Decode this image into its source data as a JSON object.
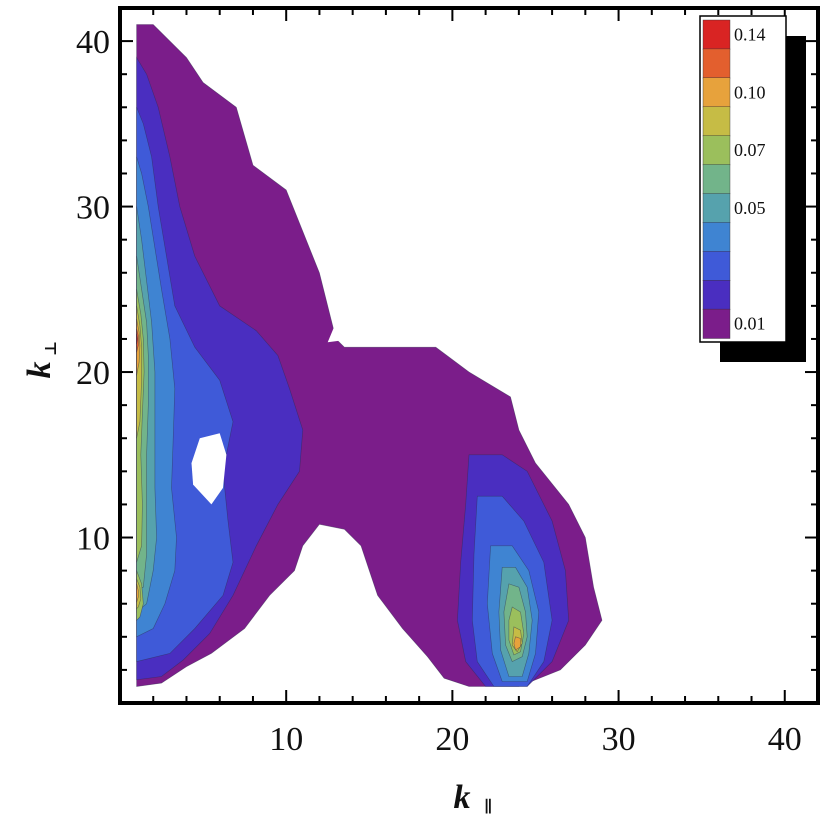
{
  "chart_data": {
    "type": "heatmap",
    "subtype": "filled-contour",
    "title": "",
    "xlabel_main": "k",
    "xlabel_sub": "∥",
    "ylabel_main": "k",
    "ylabel_sub": "⊥",
    "xlim": [
      0,
      42
    ],
    "ylim": [
      0,
      42
    ],
    "xticks": [
      10,
      20,
      30,
      40
    ],
    "yticks": [
      10,
      20,
      30,
      40
    ],
    "grid": false,
    "legend": {
      "placement": "top-right",
      "labels": [
        "0.14",
        "0.10",
        "0.07",
        "0.05",
        "0.01"
      ],
      "label_levels": [
        0.14,
        0.1,
        0.07,
        0.05,
        0.01
      ]
    },
    "levels": [
      {
        "value": 0.01,
        "color": "#7b1d8a"
      },
      {
        "value": 0.02,
        "color": "#4a2ec0"
      },
      {
        "value": 0.03,
        "color": "#3f5ad8"
      },
      {
        "value": 0.04,
        "color": "#3f84d2"
      },
      {
        "value": 0.05,
        "color": "#56a2ad"
      },
      {
        "value": 0.06,
        "color": "#72b48a"
      },
      {
        "value": 0.07,
        "color": "#9bbf5c"
      },
      {
        "value": 0.08,
        "color": "#c6bc45"
      },
      {
        "value": 0.1,
        "color": "#e7a23c"
      },
      {
        "value": 0.12,
        "color": "#e35f2e"
      },
      {
        "value": 0.14,
        "color": "#d92423"
      }
    ],
    "regions": [
      {
        "level": 0.01,
        "points": [
          [
            1,
            41
          ],
          [
            2,
            41
          ],
          [
            4,
            39
          ],
          [
            5,
            37.5
          ],
          [
            7,
            36
          ],
          [
            8,
            32.5
          ],
          [
            10,
            31
          ],
          [
            11,
            28.5
          ],
          [
            12,
            26
          ],
          [
            12.5,
            24
          ],
          [
            13,
            22
          ],
          [
            13.5,
            21.5
          ],
          [
            16,
            21.5
          ],
          [
            19,
            21.5
          ],
          [
            21,
            20
          ],
          [
            23.5,
            18.5
          ],
          [
            24,
            16.5
          ],
          [
            25,
            14.5
          ],
          [
            27,
            12
          ],
          [
            28,
            10
          ],
          [
            28.5,
            7
          ],
          [
            29,
            5
          ],
          [
            28,
            3.5
          ],
          [
            26.5,
            2
          ],
          [
            24,
            1
          ],
          [
            21,
            1
          ],
          [
            19.5,
            1.5
          ],
          [
            18.5,
            2.8
          ],
          [
            17,
            4.5
          ],
          [
            15.5,
            6.5
          ],
          [
            15,
            8
          ],
          [
            14.5,
            9.5
          ],
          [
            13.5,
            10.5
          ],
          [
            12,
            10.8
          ],
          [
            11,
            9.5
          ],
          [
            10.5,
            8
          ],
          [
            9,
            6.5
          ],
          [
            7.5,
            4.5
          ],
          [
            5.5,
            3
          ],
          [
            4,
            2.2
          ],
          [
            2.5,
            1.2
          ],
          [
            1,
            1
          ]
        ]
      },
      {
        "level": 0.02,
        "points": [
          [
            1,
            39
          ],
          [
            1.6,
            38
          ],
          [
            2.3,
            36
          ],
          [
            3,
            33
          ],
          [
            3.6,
            30
          ],
          [
            4.5,
            27
          ],
          [
            6,
            24
          ],
          [
            8.2,
            22.5
          ],
          [
            9.5,
            21
          ],
          [
            10.2,
            19
          ],
          [
            11,
            16.5
          ],
          [
            10.8,
            14
          ],
          [
            9.5,
            12
          ],
          [
            8.2,
            9.5
          ],
          [
            6.8,
            6.5
          ],
          [
            5.4,
            4.2
          ],
          [
            3.8,
            2.6
          ],
          [
            2.5,
            1.6
          ],
          [
            1,
            1.4
          ]
        ]
      },
      {
        "level": 0.02,
        "points": [
          [
            21,
            15
          ],
          [
            23,
            15
          ],
          [
            24.5,
            14
          ],
          [
            26,
            11
          ],
          [
            26.8,
            8
          ],
          [
            27,
            5
          ],
          [
            26,
            2.5
          ],
          [
            24.5,
            1
          ],
          [
            22,
            1
          ],
          [
            20.8,
            2.5
          ],
          [
            20.3,
            5
          ],
          [
            20.5,
            8.5
          ],
          [
            20.8,
            12
          ]
        ]
      },
      {
        "level": 0.03,
        "points": [
          [
            1,
            36
          ],
          [
            1.4,
            35
          ],
          [
            1.9,
            33
          ],
          [
            2.3,
            30
          ],
          [
            2.8,
            27
          ],
          [
            3.3,
            24
          ],
          [
            4.5,
            21.5
          ],
          [
            6,
            19.5
          ],
          [
            6.8,
            17
          ],
          [
            6.2,
            14
          ],
          [
            6.5,
            11
          ],
          [
            6.8,
            8.5
          ],
          [
            6.2,
            6.5
          ],
          [
            4.5,
            4.5
          ],
          [
            3,
            3
          ],
          [
            1,
            2.5
          ]
        ]
      },
      {
        "level": 0.03,
        "points": [
          [
            21.5,
            12.5
          ],
          [
            23,
            12.5
          ],
          [
            24.3,
            11
          ],
          [
            25.5,
            8.5
          ],
          [
            26,
            5
          ],
          [
            25.5,
            2.5
          ],
          [
            24.5,
            1
          ],
          [
            22.5,
            1
          ],
          [
            21.5,
            2.5
          ],
          [
            21.2,
            5
          ],
          [
            21.3,
            9
          ]
        ]
      },
      {
        "level": 0.04,
        "points": [
          [
            1,
            33
          ],
          [
            1.3,
            32
          ],
          [
            1.7,
            30
          ],
          [
            2.1,
            27.5
          ],
          [
            2.5,
            25
          ],
          [
            3,
            22
          ],
          [
            3.3,
            19
          ],
          [
            3.2,
            16
          ],
          [
            3.1,
            13
          ],
          [
            3.4,
            10
          ],
          [
            3.3,
            8
          ],
          [
            2.7,
            6
          ],
          [
            2,
            4.5
          ],
          [
            1,
            4
          ]
        ]
      },
      {
        "level": 0.04,
        "points": [
          [
            22.3,
            9.5
          ],
          [
            23.6,
            9.5
          ],
          [
            24.6,
            8
          ],
          [
            25.2,
            5.5
          ],
          [
            25,
            3
          ],
          [
            24.5,
            1.3
          ],
          [
            23,
            1.3
          ],
          [
            22.4,
            3
          ],
          [
            22.1,
            6
          ]
        ]
      },
      {
        "level": 0.05,
        "points": [
          [
            1,
            30
          ],
          [
            1.3,
            28
          ],
          [
            1.6,
            25.5
          ],
          [
            1.9,
            23
          ],
          [
            2.1,
            20
          ],
          [
            2.1,
            17
          ],
          [
            2.1,
            13
          ],
          [
            2.2,
            10
          ],
          [
            2,
            8
          ],
          [
            1.6,
            6
          ],
          [
            1,
            5.5
          ]
        ]
      },
      {
        "level": 0.05,
        "points": [
          [
            23,
            8.2
          ],
          [
            23.8,
            8.2
          ],
          [
            24.5,
            7
          ],
          [
            24.8,
            5
          ],
          [
            24.6,
            3
          ],
          [
            24.2,
            1.6
          ],
          [
            23.4,
            1.6
          ],
          [
            22.9,
            3.2
          ],
          [
            22.8,
            5.5
          ]
        ]
      },
      {
        "level": 0.06,
        "points": [
          [
            1,
            27
          ],
          [
            1.3,
            25
          ],
          [
            1.6,
            23
          ],
          [
            1.7,
            21
          ],
          [
            1.7,
            18
          ],
          [
            1.6,
            15
          ],
          [
            1.6,
            12
          ],
          [
            1.6,
            9
          ],
          [
            1.4,
            7
          ],
          [
            1,
            6.8
          ]
        ]
      },
      {
        "level": 0.06,
        "points": [
          [
            23.4,
            7.2
          ],
          [
            24,
            7
          ],
          [
            24.4,
            5.5
          ],
          [
            24.5,
            4
          ],
          [
            24.2,
            2.8
          ],
          [
            23.6,
            2.5
          ],
          [
            23.2,
            3.5
          ],
          [
            23.1,
            5.5
          ]
        ]
      },
      {
        "level": 0.07,
        "points": [
          [
            1,
            25
          ],
          [
            1.25,
            23.5
          ],
          [
            1.4,
            22
          ],
          [
            1.45,
            20
          ],
          [
            1.35,
            17.5
          ],
          [
            1.25,
            15
          ],
          [
            1.35,
            12
          ],
          [
            1.3,
            9.5
          ],
          [
            1,
            8.5
          ]
        ]
      },
      {
        "level": 0.07,
        "points": [
          [
            1,
            8
          ],
          [
            1.3,
            7.2
          ],
          [
            1.4,
            6
          ],
          [
            1.2,
            5.2
          ],
          [
            1,
            5
          ]
        ]
      },
      {
        "level": 0.07,
        "points": [
          [
            23.6,
            5.8
          ],
          [
            24.1,
            5.5
          ],
          [
            24.3,
            4.2
          ],
          [
            24.1,
            3.1
          ],
          [
            23.7,
            2.9
          ],
          [
            23.4,
            3.8
          ],
          [
            23.4,
            5
          ]
        ]
      },
      {
        "level": 0.08,
        "points": [
          [
            1,
            24
          ],
          [
            1.2,
            22.8
          ],
          [
            1.3,
            21.5
          ],
          [
            1.3,
            19.5
          ],
          [
            1.2,
            17
          ],
          [
            1,
            16
          ]
        ]
      },
      {
        "level": 0.08,
        "points": [
          [
            1,
            7.5
          ],
          [
            1.2,
            7
          ],
          [
            1.25,
            6.3
          ],
          [
            1.1,
            5.8
          ],
          [
            1,
            5.7
          ]
        ]
      },
      {
        "level": 0.08,
        "points": [
          [
            23.7,
            4.6
          ],
          [
            24.1,
            4.4
          ],
          [
            24.2,
            3.6
          ],
          [
            23.9,
            3.1
          ],
          [
            23.6,
            3.5
          ]
        ]
      },
      {
        "level": 0.1,
        "points": [
          [
            1,
            23.2
          ],
          [
            1.15,
            22.4
          ],
          [
            1.2,
            21.6
          ],
          [
            1.15,
            20.6
          ],
          [
            1,
            19.8
          ]
        ]
      },
      {
        "level": 0.1,
        "points": [
          [
            1,
            7.2
          ],
          [
            1.1,
            6.8
          ],
          [
            1.1,
            6.4
          ],
          [
            1,
            6.1
          ]
        ]
      },
      {
        "level": 0.1,
        "points": [
          [
            23.8,
            4
          ],
          [
            24.1,
            3.9
          ],
          [
            24.1,
            3.4
          ],
          [
            23.8,
            3.2
          ],
          [
            23.7,
            3.6
          ]
        ]
      },
      {
        "level": 0.12,
        "points": [
          [
            1,
            22.6
          ],
          [
            1.1,
            22.2
          ],
          [
            1.1,
            21.6
          ],
          [
            1,
            21.2
          ]
        ]
      },
      {
        "level": 0.14,
        "points": [
          [
            1,
            22.3
          ],
          [
            1.06,
            22.0
          ],
          [
            1,
            21.7
          ]
        ]
      }
    ],
    "holes": [
      {
        "points": [
          [
            13,
            23
          ],
          [
            17,
            23
          ],
          [
            19,
            23.5
          ],
          [
            20.5,
            23.5
          ],
          [
            21,
            22.5
          ],
          [
            19.5,
            22
          ],
          [
            17,
            22
          ],
          [
            14,
            22
          ],
          [
            12.5,
            21.8
          ]
        ]
      },
      {
        "points": [
          [
            5.5,
            12
          ],
          [
            6.2,
            13
          ],
          [
            6.4,
            15
          ],
          [
            6,
            16.3
          ],
          [
            4.8,
            16
          ],
          [
            4.3,
            14.5
          ],
          [
            4.4,
            13.2
          ]
        ]
      }
    ]
  }
}
